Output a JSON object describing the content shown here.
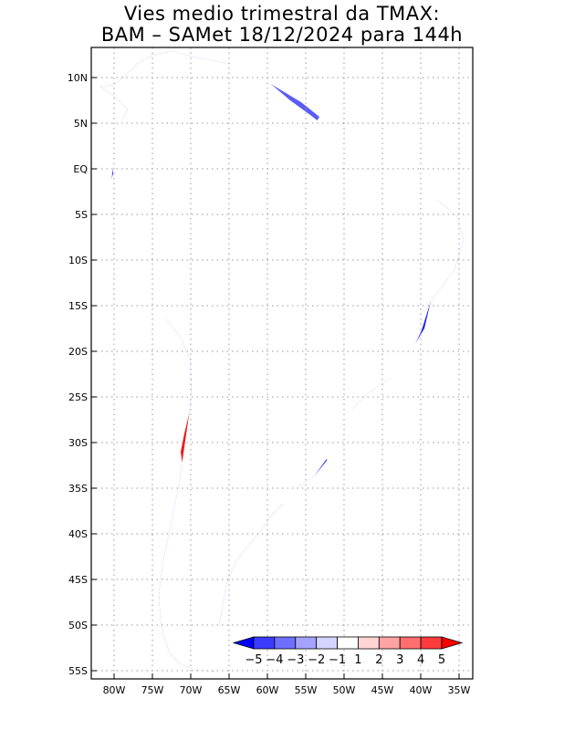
{
  "title": {
    "line1": "Vies medio trimestral da TMAX:",
    "line2": "BAM – SAMet 18/12/2024  para 144h"
  },
  "axes": {
    "lat_labels": [
      "10N",
      "5N",
      "EQ",
      "5S",
      "10S",
      "15S",
      "20S",
      "25S",
      "30S",
      "35S",
      "40S",
      "45S",
      "50S",
      "55S"
    ],
    "lat_values": [
      10,
      5,
      0,
      -5,
      -10,
      -15,
      -20,
      -25,
      -30,
      -35,
      -40,
      -45,
      -50,
      -55
    ],
    "lon_labels": [
      "80W",
      "75W",
      "70W",
      "65W",
      "60W",
      "55W",
      "50W",
      "45W",
      "40W",
      "35W"
    ],
    "lon_values": [
      -80,
      -75,
      -70,
      -65,
      -60,
      -55,
      -50,
      -45,
      -40,
      -35
    ]
  },
  "colorbar": {
    "labels": [
      "−5",
      "−4",
      "−3",
      "−2",
      "−1",
      "1",
      "2",
      "3",
      "4",
      "5"
    ],
    "colors": [
      "#0000ff",
      "#3b3bff",
      "#6f6fff",
      "#a3a3ff",
      "#d4d4ff",
      "#ffffff",
      "#ffd4d4",
      "#ffa3a3",
      "#ff6f6f",
      "#ff3b3b",
      "#ff0000"
    ]
  },
  "palette": {
    "strong_cold": "#1414f0",
    "cold": "#4a4af8",
    "mid_cold": "#8c8cfb",
    "light_cold": "#d0d0ff",
    "neutral": "#ffffff",
    "light_warm": "#ffd0d0",
    "warm": "#ff7c7c",
    "strong_warm": "#ee1111"
  }
}
